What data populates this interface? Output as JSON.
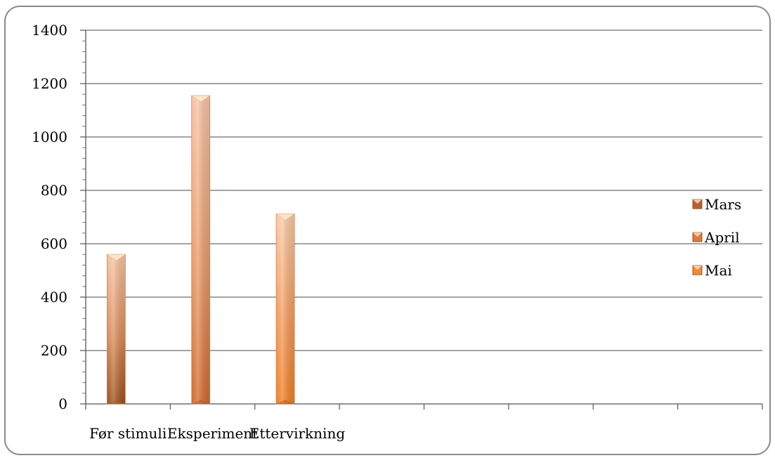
{
  "chart_data": {
    "type": "bar",
    "categories": [
      "Før stimuli",
      "Eksperiment",
      "Ettervirkning",
      "",
      "",
      "",
      "",
      ""
    ],
    "series": [
      {
        "name": "Mars",
        "values": [
          560,
          null,
          null,
          null,
          null,
          null,
          null,
          null
        ],
        "color": "#b8622a"
      },
      {
        "name": "April",
        "values": [
          null,
          1155,
          null,
          null,
          null,
          null,
          null,
          null
        ],
        "color": "#e07a38"
      },
      {
        "name": "Mai",
        "values": [
          null,
          null,
          712,
          null,
          null,
          null,
          null,
          null
        ],
        "color": "#f58a2e"
      }
    ],
    "y_ticks": [
      "0",
      "200",
      "400",
      "600",
      "800",
      "1000",
      "1200",
      "1400"
    ],
    "ylim": [
      0,
      1400
    ],
    "grid": true,
    "legend_position": "right",
    "title": "",
    "xlabel": "",
    "ylabel": ""
  }
}
